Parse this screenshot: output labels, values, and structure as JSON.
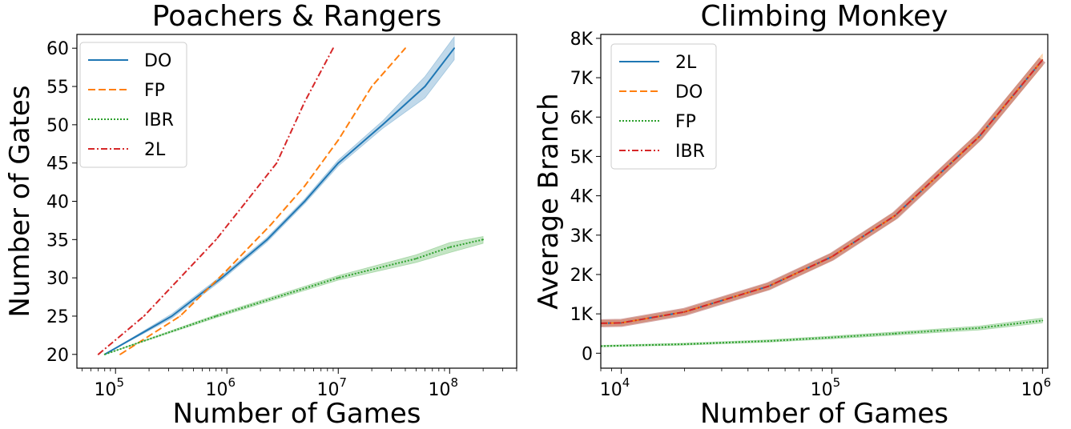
{
  "chart_data": [
    {
      "type": "line",
      "title": "Poachers & Rangers",
      "xlabel": "Number of Games",
      "ylabel": "Number of Gates",
      "xscale": "log",
      "xlim": [
        45000,
        400000000
      ],
      "ylim": [
        18.2,
        61.8
      ],
      "xticks": [
        {
          "base": "10",
          "exp": "5",
          "value": 100000
        },
        {
          "base": "10",
          "exp": "6",
          "value": 1000000
        },
        {
          "base": "10",
          "exp": "7",
          "value": 10000000
        },
        {
          "base": "10",
          "exp": "8",
          "value": 100000000
        }
      ],
      "yticks": [
        "20",
        "25",
        "30",
        "35",
        "40",
        "45",
        "50",
        "55",
        "60"
      ],
      "legend_position": "upper-left",
      "series": [
        {
          "name": "DO",
          "color": "#1f77b4",
          "dash": "solid",
          "x": [
            80000,
            320000,
            900000,
            2300000,
            5000000,
            10000000,
            25000000,
            60000000,
            110000000
          ],
          "y": [
            20,
            25,
            30,
            35,
            40,
            45,
            50,
            55,
            60
          ],
          "band": [
            [
              80000,
              20,
              20
            ],
            [
              320000,
              24.7,
              25.3
            ],
            [
              900000,
              29.7,
              30.3
            ],
            [
              2300000,
              34.7,
              35.3
            ],
            [
              5000000,
              39.7,
              40.3
            ],
            [
              10000000,
              44.6,
              45.4
            ],
            [
              25000000,
              49.5,
              50.5
            ],
            [
              60000000,
              53.5,
              56.3
            ],
            [
              110000000,
              58.5,
              61.5
            ]
          ]
        },
        {
          "name": "FP",
          "color": "#ff7f0e",
          "dash": "dashed",
          "x": [
            110000,
            380000,
            1000000,
            2500000,
            5000000,
            10000000,
            20000000,
            40000000
          ],
          "y": [
            20,
            25,
            31,
            37,
            42,
            48,
            55,
            60
          ]
        },
        {
          "name": "IBR",
          "color": "#2ca02c",
          "dash": "dotted",
          "x": [
            80000,
            800000,
            10000000,
            50000000,
            100000000,
            200000000
          ],
          "y": [
            20,
            25,
            30,
            32.5,
            34,
            35
          ],
          "band": [
            [
              80000,
              20,
              20
            ],
            [
              800000,
              24.8,
              25.2
            ],
            [
              10000000,
              29.7,
              30.3
            ],
            [
              50000000,
              32,
              33
            ],
            [
              100000000,
              33.3,
              34.6
            ],
            [
              200000000,
              34.5,
              35.4
            ]
          ]
        },
        {
          "name": "2L",
          "color": "#d62728",
          "dash": "dashdot",
          "x": [
            70000,
            180000,
            380000,
            800000,
            1500000,
            2800000,
            5000000,
            9000000
          ],
          "y": [
            20,
            25,
            30,
            35,
            40,
            45,
            53,
            60
          ]
        }
      ]
    },
    {
      "type": "line",
      "title": "Climbing Monkey",
      "xlabel": "Number of Games",
      "ylabel": "Average Branch",
      "xscale": "log",
      "xlim": [
        8000,
        1060000
      ],
      "ylim": [
        -380,
        8100
      ],
      "xticks": [
        {
          "base": "10",
          "exp": "4",
          "value": 10000
        },
        {
          "base": "10",
          "exp": "5",
          "value": 100000
        },
        {
          "base": "10",
          "exp": "6",
          "value": 1000000
        }
      ],
      "yticks": [
        "0",
        "1K",
        "2K",
        "3K",
        "4K",
        "5K",
        "6K",
        "7K",
        "8K"
      ],
      "legend_position": "upper-left",
      "series": [
        {
          "name": "2L",
          "color": "#1f77b4",
          "dash": "solid",
          "x": [
            8000,
            10000,
            20000,
            50000,
            100000,
            200000,
            500000,
            1000000
          ],
          "y": [
            760,
            770,
            1050,
            1700,
            2450,
            3500,
            5500,
            7450
          ]
        },
        {
          "name": "DO",
          "color": "#ff7f0e",
          "dash": "dashed",
          "x": [
            8000,
            10000,
            20000,
            50000,
            100000,
            200000,
            500000,
            1000000
          ],
          "y": [
            760,
            770,
            1050,
            1700,
            2450,
            3500,
            5500,
            7450
          ],
          "band": [
            [
              8000,
              690,
              830
            ],
            [
              10000,
              700,
              840
            ],
            [
              20000,
              980,
              1120
            ],
            [
              50000,
              1620,
              1780
            ],
            [
              100000,
              2360,
              2540
            ],
            [
              200000,
              3400,
              3600
            ],
            [
              500000,
              5380,
              5620
            ],
            [
              1000000,
              7300,
              7600
            ]
          ]
        },
        {
          "name": "FP",
          "color": "#2ca02c",
          "dash": "dotted",
          "x": [
            8000,
            20000,
            50000,
            100000,
            200000,
            500000,
            1000000
          ],
          "y": [
            180,
            230,
            310,
            400,
            500,
            640,
            830
          ],
          "band": [
            [
              8000,
              160,
              200
            ],
            [
              20000,
              205,
              255
            ],
            [
              50000,
              280,
              340
            ],
            [
              100000,
              365,
              435
            ],
            [
              200000,
              460,
              540
            ],
            [
              500000,
              590,
              690
            ],
            [
              1000000,
              770,
              890
            ]
          ]
        },
        {
          "name": "IBR",
          "color": "#d62728",
          "dash": "dashdot",
          "x": [
            8000,
            10000,
            20000,
            50000,
            100000,
            200000,
            500000,
            1000000
          ],
          "y": [
            760,
            770,
            1050,
            1700,
            2450,
            3500,
            5500,
            7450
          ]
        }
      ]
    }
  ]
}
